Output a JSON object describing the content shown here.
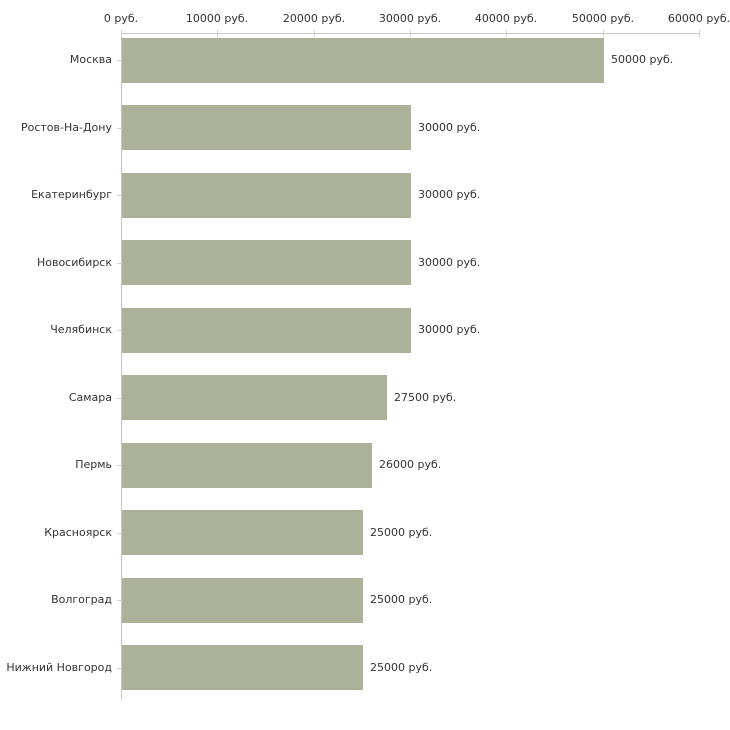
{
  "chart_data": {
    "type": "bar",
    "orientation": "horizontal",
    "title": "",
    "xlabel": "",
    "ylabel": "",
    "unit": "руб.",
    "categories": [
      "Москва",
      "Ростов-На-Дону",
      "Екатеринбург",
      "Новосибирск",
      "Челябинск",
      "Самара",
      "Пермь",
      "Красноярск",
      "Волгоград",
      "Нижний Новгород"
    ],
    "values": [
      50000,
      30000,
      30000,
      30000,
      30000,
      27500,
      26000,
      25000,
      25000,
      25000
    ],
    "value_labels": [
      "50000 руб.",
      "30000 руб.",
      "30000 руб.",
      "30000 руб.",
      "30000 руб.",
      "27500 руб.",
      "26000 руб.",
      "25000 руб.",
      "25000 руб.",
      "25000 руб."
    ],
    "x_ticks": [
      0,
      10000,
      20000,
      30000,
      40000,
      50000,
      60000
    ],
    "x_tick_labels": [
      "0 руб.",
      "10000 руб.",
      "20000 руб.",
      "30000 руб.",
      "40000 руб.",
      "50000 руб.",
      "60000 руб."
    ],
    "xlim": [
      0,
      60000
    ],
    "grid": false,
    "legend": false,
    "colors": {
      "bar": "#acb299",
      "axis": "#c8c8c8",
      "tick": "#d6d3bd",
      "text": "#333333",
      "background": "#ffffff"
    }
  }
}
